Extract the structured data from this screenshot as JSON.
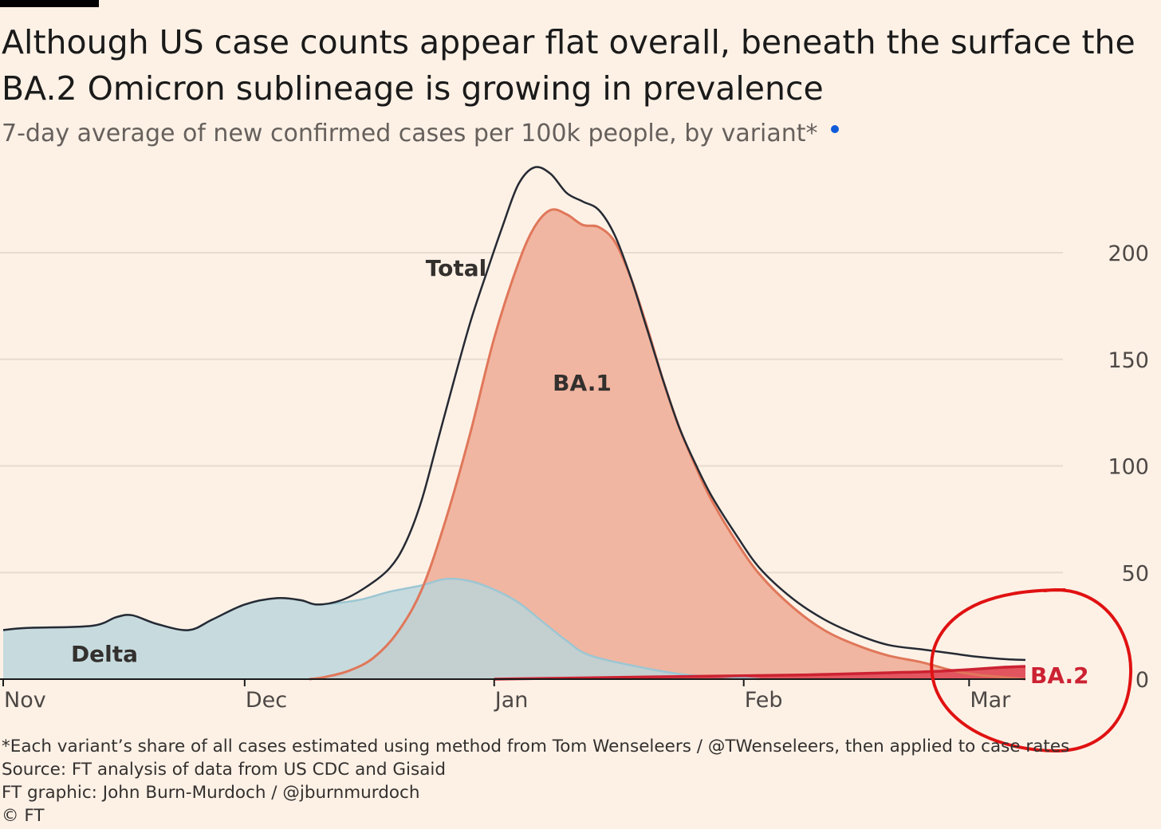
{
  "header": {
    "title": "Although US case counts appear flat overall, beneath the surface the BA.2 Omicron sublineage is growing in prevalence",
    "subtitle": "7-day average of new confirmed cases per 100k people, by variant*"
  },
  "colors": {
    "background": "#fdf1e6",
    "delta_fill": "#b9d6dc",
    "delta_line": "#9cc6d3",
    "ba1_fill": "#f1b6a1",
    "ba1_line": "#e0775a",
    "ba2_fill": "#e2555f",
    "ba2_line": "#cc2232",
    "total_line": "#262a33",
    "annotation_circle": "#e01212",
    "grid": "#e8dcd0"
  },
  "chart_data": {
    "type": "area",
    "title": "Although US case counts appear flat overall, beneath the surface the BA.2 Omicron sublineage is growing in prevalence",
    "subtitle": "7-day average of new confirmed cases per 100k people, by variant*",
    "x_unit": "days since Nov 1",
    "xlim": [
      0,
      127
    ],
    "ylim": [
      0,
      240
    ],
    "yticks": [
      0,
      50,
      100,
      150,
      200
    ],
    "y_axis_position": "right",
    "xticks": [
      {
        "day": 0,
        "label": "Nov"
      },
      {
        "day": 30,
        "label": "Dec"
      },
      {
        "day": 61,
        "label": "Jan"
      },
      {
        "day": 92,
        "label": "Feb"
      },
      {
        "day": 120,
        "label": "Mar"
      }
    ],
    "grid": true,
    "series": [
      {
        "name": "Delta",
        "x": [
          0,
          3,
          11,
          14,
          16,
          19,
          23,
          26,
          30,
          34,
          37,
          39,
          44,
          48,
          52,
          55,
          58,
          61,
          64,
          67,
          70,
          73,
          80,
          85,
          90,
          94
        ],
        "y": [
          23,
          24,
          25,
          29,
          30,
          26,
          23,
          28,
          35,
          38,
          37,
          35,
          37,
          41,
          44,
          47,
          46,
          42,
          36,
          27,
          18,
          11,
          5,
          2,
          1,
          0
        ]
      },
      {
        "name": "BA.1",
        "x": [
          38,
          40,
          43,
          46,
          49,
          52,
          55,
          58,
          61,
          64,
          66,
          68,
          70,
          72,
          74,
          76,
          78,
          80,
          82,
          84,
          86,
          88,
          91,
          94,
          98,
          102,
          106,
          110,
          114,
          118,
          121,
          124,
          127
        ],
        "y": [
          0,
          1,
          4,
          10,
          22,
          42,
          75,
          115,
          160,
          195,
          212,
          220,
          218,
          213,
          212,
          205,
          188,
          165,
          140,
          118,
          100,
          84,
          65,
          49,
          34,
          23,
          16,
          11,
          8,
          4,
          2,
          1,
          0
        ]
      },
      {
        "name": "BA.2",
        "x": [
          61,
          70,
          80,
          90,
          100,
          110,
          115,
          120,
          124,
          127
        ],
        "y": [
          0,
          0.5,
          1,
          1.5,
          2,
          3,
          3.5,
          4.5,
          5.5,
          6
        ]
      },
      {
        "name": "Total",
        "x": [
          0,
          3,
          11,
          14,
          16,
          19,
          23,
          26,
          30,
          34,
          37,
          39,
          42,
          45,
          48,
          50,
          52,
          54,
          56,
          58,
          60,
          62,
          64,
          66,
          68,
          70,
          72,
          74,
          76,
          78,
          80,
          82,
          84,
          86,
          88,
          91,
          94,
          98,
          102,
          106,
          110,
          114,
          118,
          121,
          124,
          127
        ],
        "y": [
          23,
          24,
          25,
          29,
          30,
          26,
          23,
          28,
          35,
          38,
          37,
          35,
          37,
          43,
          52,
          64,
          84,
          112,
          140,
          167,
          190,
          212,
          232,
          240,
          237,
          228,
          224,
          220,
          208,
          188,
          164,
          140,
          118,
          101,
          86,
          68,
          52,
          38,
          28,
          21,
          16,
          14,
          12,
          10.5,
          9.5,
          9
        ]
      }
    ],
    "labels": [
      {
        "text": "Total"
      },
      {
        "text": "BA.1"
      },
      {
        "text": "Delta"
      },
      {
        "text": "BA.2"
      }
    ]
  },
  "footnotes": {
    "method": "*Each variant’s share of all cases estimated using method from Tom Wenseleers / @TWenseleers, then applied to case rates",
    "source": "Source: FT analysis of data from US CDC and Gisaid",
    "credit": "FT graphic: John Burn-Murdoch / @jburnmurdoch",
    "copyright": "© FT"
  }
}
